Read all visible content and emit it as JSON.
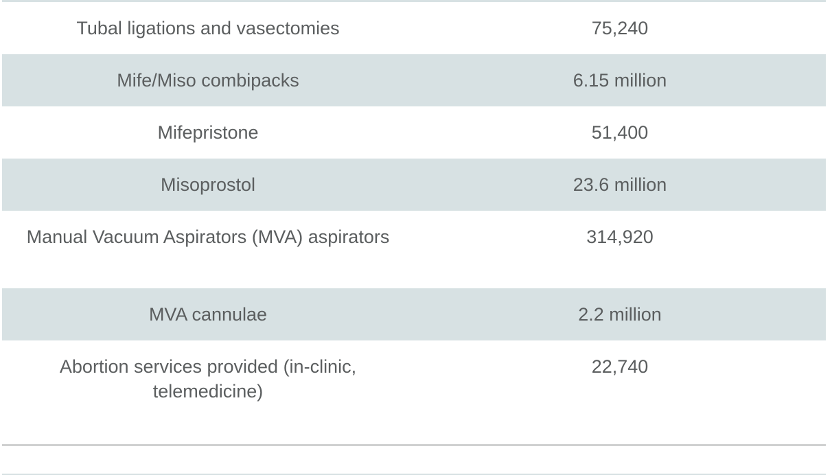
{
  "rows": [
    {
      "name": "Tubal ligations and vasectomies",
      "value": "75,240"
    },
    {
      "name": "Mife/Miso combipacks",
      "value": "6.15 million"
    },
    {
      "name": "Mifepristone",
      "value": "51,400"
    },
    {
      "name": "Misoprostol",
      "value": "23.6 million"
    },
    {
      "name": "Manual Vacuum Aspirators (MVA) aspirators",
      "value": "314,920"
    },
    {
      "name": "MVA cannulae",
      "value": "2.2 million"
    },
    {
      "name": "Abortion services provided (in-clinic, telemedicine)",
      "value": "22,740"
    }
  ],
  "colors": {
    "text": "#5b5e5f",
    "shaded_row": "#d7e1e3",
    "divider": "#cfd0d0"
  }
}
